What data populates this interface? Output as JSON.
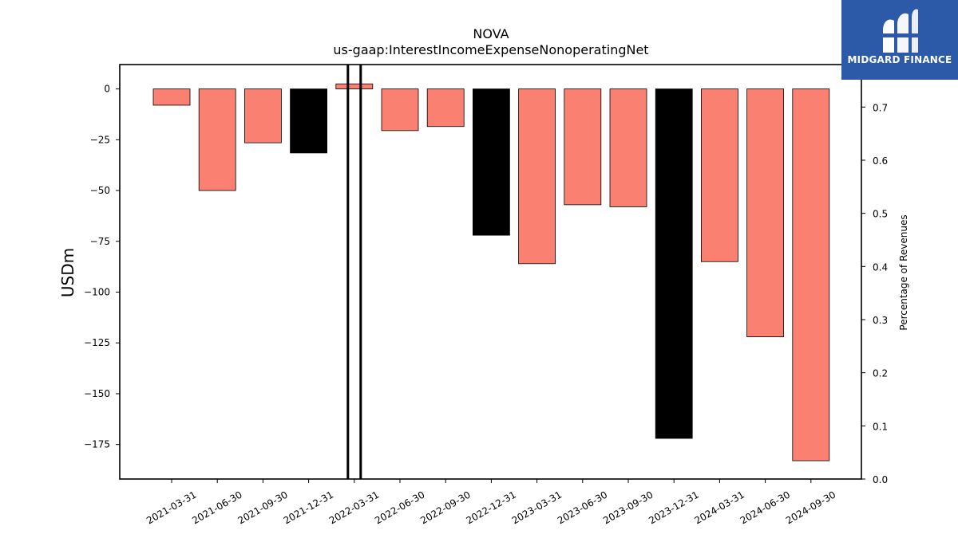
{
  "chart_data": {
    "type": "bar",
    "title": "NOVA",
    "subtitle": "us-gaap:InterestIncomeExpenseNonoperatingNet",
    "ylabel": "USDm",
    "y2label": "Percentage of Revenues",
    "ylim": [
      -192,
      12
    ],
    "y2lim": [
      0.0,
      0.78
    ],
    "yticks": [
      "0",
      "−25",
      "−50",
      "−75",
      "−100",
      "−125",
      "−150",
      "−175"
    ],
    "yticks_values": [
      0,
      -25,
      -50,
      -75,
      -100,
      -125,
      -150,
      -175
    ],
    "y2ticks": [
      "0.0",
      "0.1",
      "0.2",
      "0.3",
      "0.4",
      "0.5",
      "0.6",
      "0.7"
    ],
    "y2ticks_values": [
      0.0,
      0.1,
      0.2,
      0.3,
      0.4,
      0.5,
      0.6,
      0.7
    ],
    "categories": [
      "2021-03-31",
      "2021-06-30",
      "2021-09-30",
      "2021-12-31",
      "2022-03-31",
      "2022-06-30",
      "2022-09-30",
      "2022-12-31",
      "2023-03-31",
      "2023-06-30",
      "2023-09-30",
      "2023-12-31",
      "2024-03-31",
      "2024-06-30",
      "2024-09-30"
    ],
    "values": [
      -8,
      -50,
      -26.5,
      -31.5,
      2.5,
      -20.5,
      -18.5,
      -72,
      -86,
      -57,
      -58,
      -172,
      -85,
      -122,
      -183
    ],
    "colors": [
      "#fa8072",
      "#fa8072",
      "#fa8072",
      "#000000",
      "#fa8072",
      "#fa8072",
      "#fa8072",
      "#000000",
      "#fa8072",
      "#fa8072",
      "#fa8072",
      "#000000",
      "#fa8072",
      "#fa8072",
      "#fa8072"
    ],
    "highlight_category": "2022-03-31",
    "grid": false
  },
  "logo": {
    "text": "MIDGARD FINANCE",
    "color": "#2d5aa8"
  }
}
